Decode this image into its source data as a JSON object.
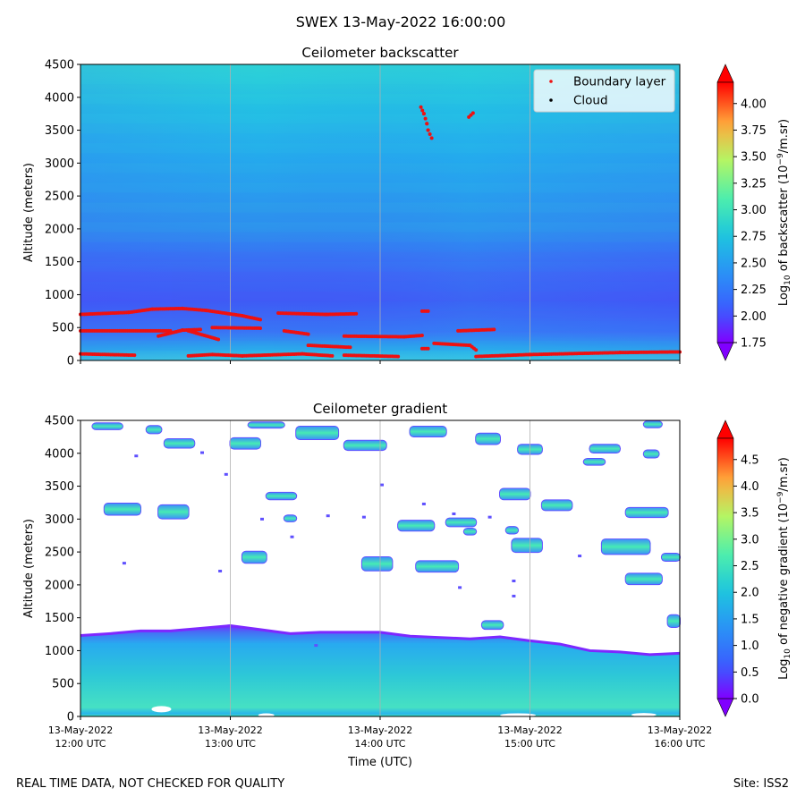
{
  "suptitle": "SWEX 13-May-2022 16:00:00",
  "footer_left": "REAL TIME DATA, NOT CHECKED FOR QUALITY",
  "footer_right": "Site: ISS2",
  "colors": {
    "boundary_layer": "#ee1111",
    "cloud": "#000000",
    "gridline": "#b0b0b0"
  },
  "chart_data": [
    {
      "type": "heatmap",
      "title": "Ceilometer backscatter",
      "xlabel": "",
      "ylabel": "Altitude (meters)",
      "ylim": [
        0,
        4500
      ],
      "yticks": [
        "0",
        "500",
        "1000",
        "1500",
        "2000",
        "2500",
        "3000",
        "3500",
        "4000",
        "4500"
      ],
      "xticks": [],
      "colorbar": {
        "label_prefix": "Log",
        "label_sub": "10",
        "label_mid": " of backscatter (10",
        "label_sup": "−9",
        "label_suffix": "/m.sr)",
        "range": [
          1.75,
          4.2
        ],
        "ticks": [
          "1.75",
          "2.00",
          "2.25",
          "2.50",
          "2.75",
          "3.00",
          "3.25",
          "3.50",
          "3.75",
          "4.00"
        ]
      },
      "legend": {
        "position": "top-right",
        "entries": [
          {
            "label": "Boundary layer",
            "color": "#ee1111"
          },
          {
            "label": "Cloud",
            "color": "#000000"
          }
        ]
      },
      "boundary_layer_segments": [
        [
          [
            0.0,
            700
          ],
          [
            0.08,
            730
          ],
          [
            0.12,
            780
          ],
          [
            0.17,
            790
          ],
          [
            0.21,
            760
          ],
          [
            0.27,
            680
          ],
          [
            0.3,
            620
          ]
        ],
        [
          [
            0.0,
            450
          ],
          [
            0.15,
            450
          ]
        ],
        [
          [
            0.13,
            370
          ],
          [
            0.17,
            460
          ],
          [
            0.2,
            470
          ]
        ],
        [
          [
            0.18,
            450
          ],
          [
            0.23,
            320
          ]
        ],
        [
          [
            0.0,
            100
          ],
          [
            0.09,
            80
          ]
        ],
        [
          [
            0.18,
            70
          ],
          [
            0.22,
            90
          ],
          [
            0.27,
            70
          ],
          [
            0.37,
            100
          ],
          [
            0.42,
            70
          ]
        ],
        [
          [
            0.22,
            500
          ],
          [
            0.3,
            490
          ]
        ],
        [
          [
            0.33,
            720
          ],
          [
            0.41,
            700
          ],
          [
            0.46,
            710
          ]
        ],
        [
          [
            0.34,
            450
          ],
          [
            0.38,
            400
          ]
        ],
        [
          [
            0.38,
            230
          ],
          [
            0.45,
            200
          ]
        ],
        [
          [
            0.44,
            370
          ],
          [
            0.54,
            360
          ],
          [
            0.57,
            380
          ]
        ],
        [
          [
            0.44,
            80
          ],
          [
            0.53,
            60
          ]
        ],
        [
          [
            0.57,
            750
          ],
          [
            0.58,
            750
          ]
        ],
        [
          [
            0.59,
            260
          ],
          [
            0.65,
            230
          ],
          [
            0.66,
            160
          ]
        ],
        [
          [
            0.57,
            180
          ],
          [
            0.58,
            180
          ]
        ],
        [
          [
            0.63,
            450
          ],
          [
            0.69,
            470
          ]
        ],
        [
          [
            0.66,
            60
          ],
          [
            0.75,
            90
          ],
          [
            0.9,
            120
          ],
          [
            1.0,
            130
          ]
        ],
        [
          [
            0.568,
            3850
          ],
          [
            0.573,
            3750
          ],
          [
            0.578,
            3600
          ],
          [
            0.58,
            3500
          ],
          [
            0.586,
            3380
          ]
        ],
        [
          [
            0.648,
            3700
          ],
          [
            0.655,
            3760
          ]
        ]
      ]
    },
    {
      "type": "heatmap",
      "title": "Ceilometer gradient",
      "xlabel": "Time (UTC)",
      "ylabel": "Altitude (meters)",
      "ylim": [
        0,
        4500
      ],
      "yticks": [
        "0",
        "500",
        "1000",
        "1500",
        "2000",
        "2500",
        "3000",
        "3500",
        "4000",
        "4500"
      ],
      "xticks": [
        {
          "date": "13-May-2022",
          "time": "12:00 UTC"
        },
        {
          "date": "13-May-2022",
          "time": "13:00 UTC"
        },
        {
          "date": "13-May-2022",
          "time": "14:00 UTC"
        },
        {
          "date": "13-May-2022",
          "time": "15:00 UTC"
        },
        {
          "date": "13-May-2022",
          "time": "16:00 UTC"
        }
      ],
      "colorbar": {
        "label_prefix": "Log",
        "label_sub": "10",
        "label_mid": " of negative gradient (10",
        "label_sup": "−9",
        "label_suffix": "/m.sr)",
        "range": [
          0.0,
          4.9
        ],
        "ticks": [
          "0.0",
          "0.5",
          "1.0",
          "1.5",
          "2.0",
          "2.5",
          "3.0",
          "3.5",
          "4.0",
          "4.5"
        ]
      },
      "dense_layer_top": [
        [
          0.0,
          1230
        ],
        [
          0.05,
          1260
        ],
        [
          0.1,
          1300
        ],
        [
          0.15,
          1300
        ],
        [
          0.2,
          1340
        ],
        [
          0.25,
          1380
        ],
        [
          0.3,
          1320
        ],
        [
          0.35,
          1260
        ],
        [
          0.4,
          1280
        ],
        [
          0.45,
          1280
        ],
        [
          0.5,
          1280
        ],
        [
          0.55,
          1220
        ],
        [
          0.6,
          1200
        ],
        [
          0.65,
          1180
        ],
        [
          0.7,
          1210
        ],
        [
          0.75,
          1150
        ],
        [
          0.8,
          1100
        ],
        [
          0.85,
          1000
        ],
        [
          0.9,
          980
        ],
        [
          0.95,
          940
        ],
        [
          1.0,
          960
        ]
      ],
      "cloud_patches": [
        [
          0.02,
          4410,
          0.05,
          90
        ],
        [
          0.11,
          4360,
          0.025,
          110
        ],
        [
          0.14,
          4150,
          0.05,
          130
        ],
        [
          0.25,
          4150,
          0.05,
          160
        ],
        [
          0.28,
          4430,
          0.06,
          80
        ],
        [
          0.36,
          4310,
          0.07,
          190
        ],
        [
          0.44,
          4120,
          0.07,
          140
        ],
        [
          0.55,
          4330,
          0.06,
          150
        ],
        [
          0.66,
          4220,
          0.04,
          160
        ],
        [
          0.73,
          4060,
          0.04,
          140
        ],
        [
          0.85,
          4070,
          0.05,
          120
        ],
        [
          0.94,
          4440,
          0.03,
          90
        ],
        [
          0.94,
          3990,
          0.025,
          110
        ],
        [
          0.84,
          3870,
          0.02,
          80
        ],
        [
          0.84,
          3870,
          0.035,
          90
        ],
        [
          0.04,
          3150,
          0.06,
          170
        ],
        [
          0.13,
          3110,
          0.05,
          200
        ],
        [
          0.31,
          3350,
          0.05,
          100
        ],
        [
          0.34,
          3010,
          0.02,
          90
        ],
        [
          0.53,
          2900,
          0.06,
          150
        ],
        [
          0.61,
          2950,
          0.05,
          120
        ],
        [
          0.64,
          2810,
          0.02,
          90
        ],
        [
          0.71,
          2830,
          0.02,
          100
        ],
        [
          0.7,
          3380,
          0.05,
          160
        ],
        [
          0.77,
          3210,
          0.05,
          150
        ],
        [
          0.91,
          3100,
          0.07,
          140
        ],
        [
          0.72,
          2600,
          0.05,
          200
        ],
        [
          0.87,
          2580,
          0.08,
          220
        ],
        [
          0.27,
          2420,
          0.04,
          170
        ],
        [
          0.47,
          2320,
          0.05,
          200
        ],
        [
          0.56,
          2280,
          0.07,
          160
        ],
        [
          0.97,
          2420,
          0.03,
          110
        ],
        [
          0.91,
          2090,
          0.06,
          160
        ],
        [
          0.67,
          1390,
          0.035,
          120
        ],
        [
          0.98,
          1450,
          0.02,
          180
        ]
      ]
    }
  ]
}
